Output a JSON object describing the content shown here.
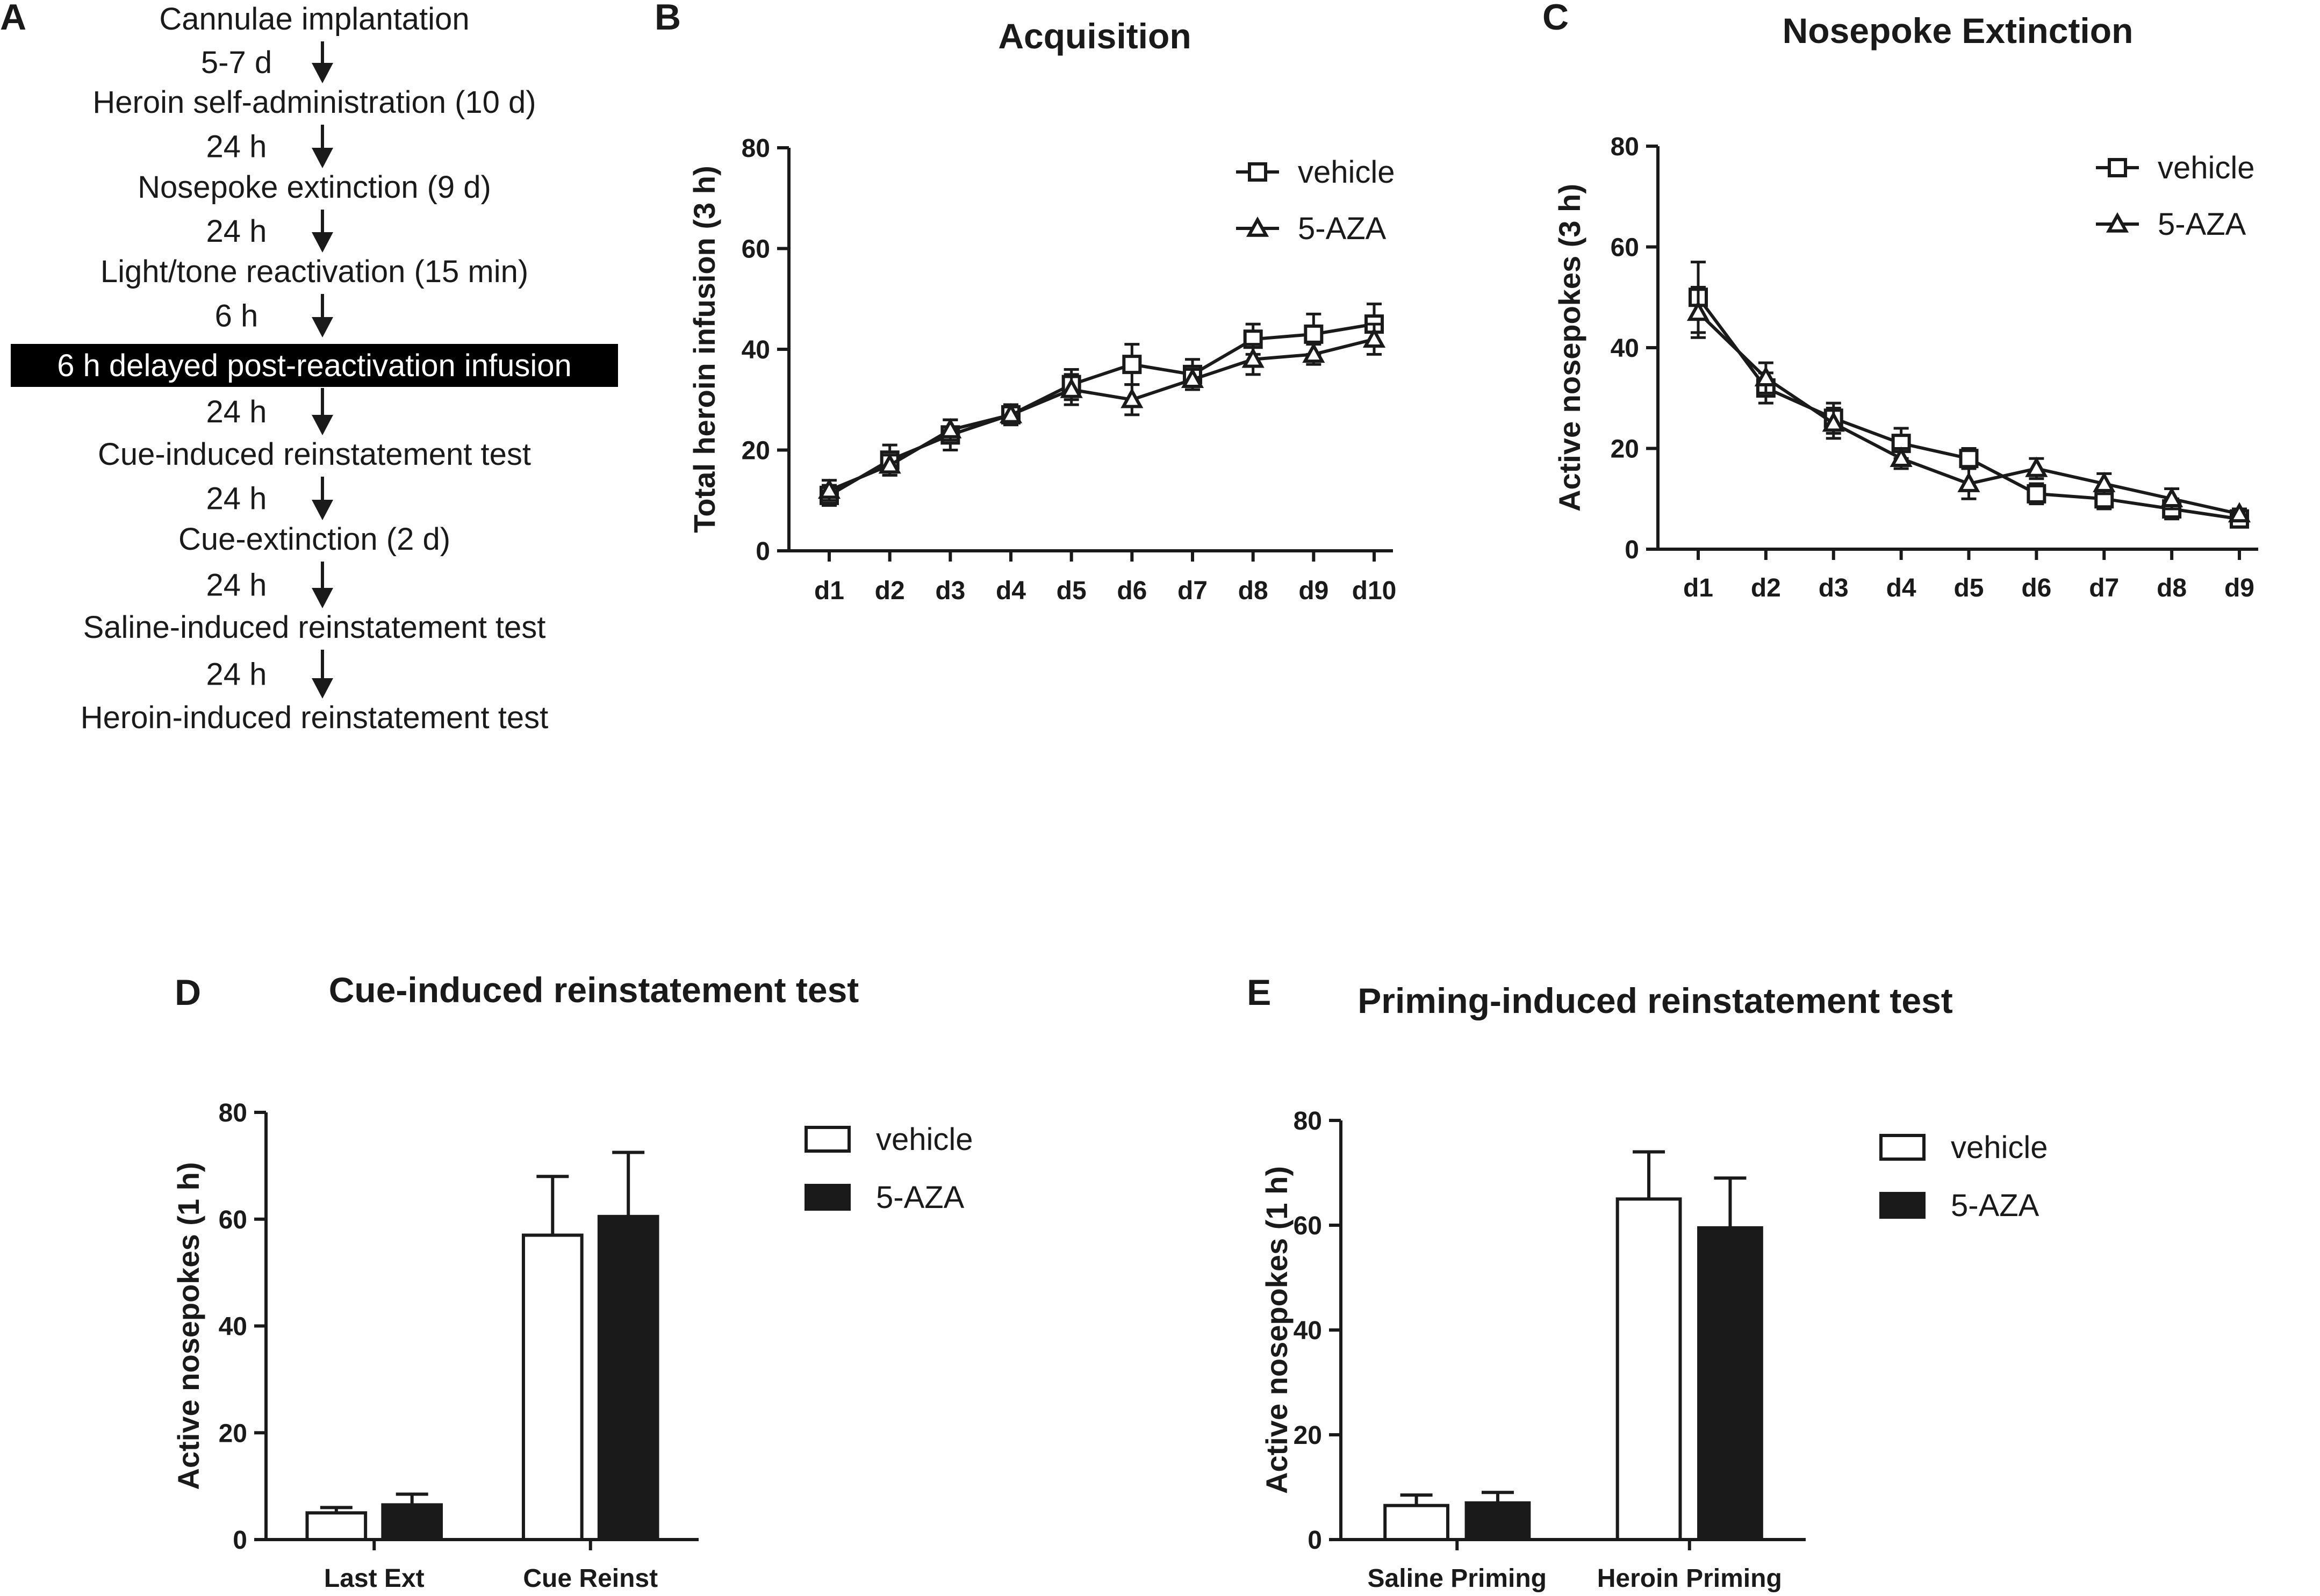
{
  "panels": {
    "A": {
      "letter": "A",
      "steps": [
        "Cannulae implantation",
        "Heroin self-administration (10 d)",
        "Nosepoke extinction (9 d)",
        "Light/tone reactivation (15 min)",
        "6 h delayed post-reactivation  infusion",
        "Cue-induced reinstatement test",
        "Cue-extinction (2 d)",
        "Saline-induced reinstatement test",
        "Heroin-induced reinstatement test"
      ],
      "intervals": [
        "5-7 d",
        "24 h",
        "24 h",
        "6 h",
        "24 h",
        "24 h",
        "24 h",
        "24 h"
      ],
      "highlight_step_index": 4
    },
    "B": {
      "letter": "B"
    },
    "C": {
      "letter": "C"
    },
    "D": {
      "letter": "D"
    },
    "E": {
      "letter": "E"
    }
  },
  "colors": {
    "vehicle_fill": "#ffffff",
    "aza_fill": "#1a1a1a",
    "line": "#1a1a1a",
    "highlight_bg": "#000000"
  },
  "chart_data": [
    {
      "id": "B",
      "type": "line",
      "title": "Acquisition",
      "xlabel": "",
      "ylabel": "Total heroin infusion (3 h)",
      "ylim": [
        0,
        80
      ],
      "yticks": [
        0,
        20,
        40,
        60,
        80
      ],
      "categories": [
        "d1",
        "d2",
        "d3",
        "d4",
        "d5",
        "d6",
        "d7",
        "d8",
        "d9",
        "d10"
      ],
      "legend_position": "top-right",
      "series": [
        {
          "name": "vehicle",
          "marker": "square",
          "values": [
            11,
            18,
            23,
            27,
            33,
            37,
            35,
            42,
            43,
            45
          ],
          "errors": [
            2,
            3,
            3,
            2,
            3,
            4,
            3,
            3,
            4,
            4
          ]
        },
        {
          "name": "5-AZA",
          "marker": "triangle",
          "values": [
            12,
            17,
            24,
            27,
            32,
            30,
            34,
            38,
            39,
            42
          ],
          "errors": [
            2,
            2,
            2,
            2,
            3,
            3,
            2,
            3,
            2,
            3
          ]
        }
      ]
    },
    {
      "id": "C",
      "type": "line",
      "title": "Nosepoke Extinction",
      "xlabel": "",
      "ylabel": "Active nosepokes (3 h)",
      "ylim": [
        0,
        80
      ],
      "yticks": [
        0,
        20,
        40,
        60,
        80
      ],
      "categories": [
        "d1",
        "d2",
        "d3",
        "d4",
        "d5",
        "d6",
        "d7",
        "d8",
        "d9"
      ],
      "legend_position": "top-right",
      "series": [
        {
          "name": "vehicle",
          "marker": "square",
          "values": [
            50,
            32,
            26,
            21,
            18,
            11,
            10,
            8,
            6
          ],
          "errors": [
            7,
            3,
            3,
            3,
            2,
            2,
            2,
            2,
            1
          ]
        },
        {
          "name": "5-AZA",
          "marker": "triangle",
          "values": [
            47,
            34,
            25,
            18,
            13,
            16,
            13,
            10,
            7
          ],
          "errors": [
            5,
            3,
            3,
            2,
            3,
            2,
            2,
            2,
            1
          ]
        }
      ]
    },
    {
      "id": "D",
      "type": "bar",
      "title": "Cue-induced reinstatement test",
      "xlabel": "",
      "ylabel": "Active nosepokes (1 h)",
      "ylim": [
        0,
        80
      ],
      "yticks": [
        0,
        20,
        40,
        60,
        80
      ],
      "categories": [
        "Last Ext",
        "Cue Reinst"
      ],
      "legend_position": "top-right",
      "series": [
        {
          "name": "vehicle",
          "fill": "white",
          "values": [
            5,
            57
          ],
          "errors": [
            1,
            11
          ]
        },
        {
          "name": "5-AZA",
          "fill": "black",
          "values": [
            6.5,
            60.5
          ],
          "errors": [
            2,
            12
          ]
        }
      ]
    },
    {
      "id": "E",
      "type": "bar",
      "title": "Priming-induced reinstatement test",
      "xlabel": "",
      "ylabel": "Active nosepokes (1 h)",
      "ylim": [
        0,
        80
      ],
      "yticks": [
        0,
        20,
        40,
        60,
        80
      ],
      "categories": [
        "Saline Priming",
        "Heroin Priming"
      ],
      "legend_position": "top-right",
      "series": [
        {
          "name": "vehicle",
          "fill": "white",
          "values": [
            6.5,
            65
          ],
          "errors": [
            2,
            9
          ]
        },
        {
          "name": "5-AZA",
          "fill": "black",
          "values": [
            7,
            59.5
          ],
          "errors": [
            2,
            9.5
          ]
        }
      ]
    }
  ]
}
